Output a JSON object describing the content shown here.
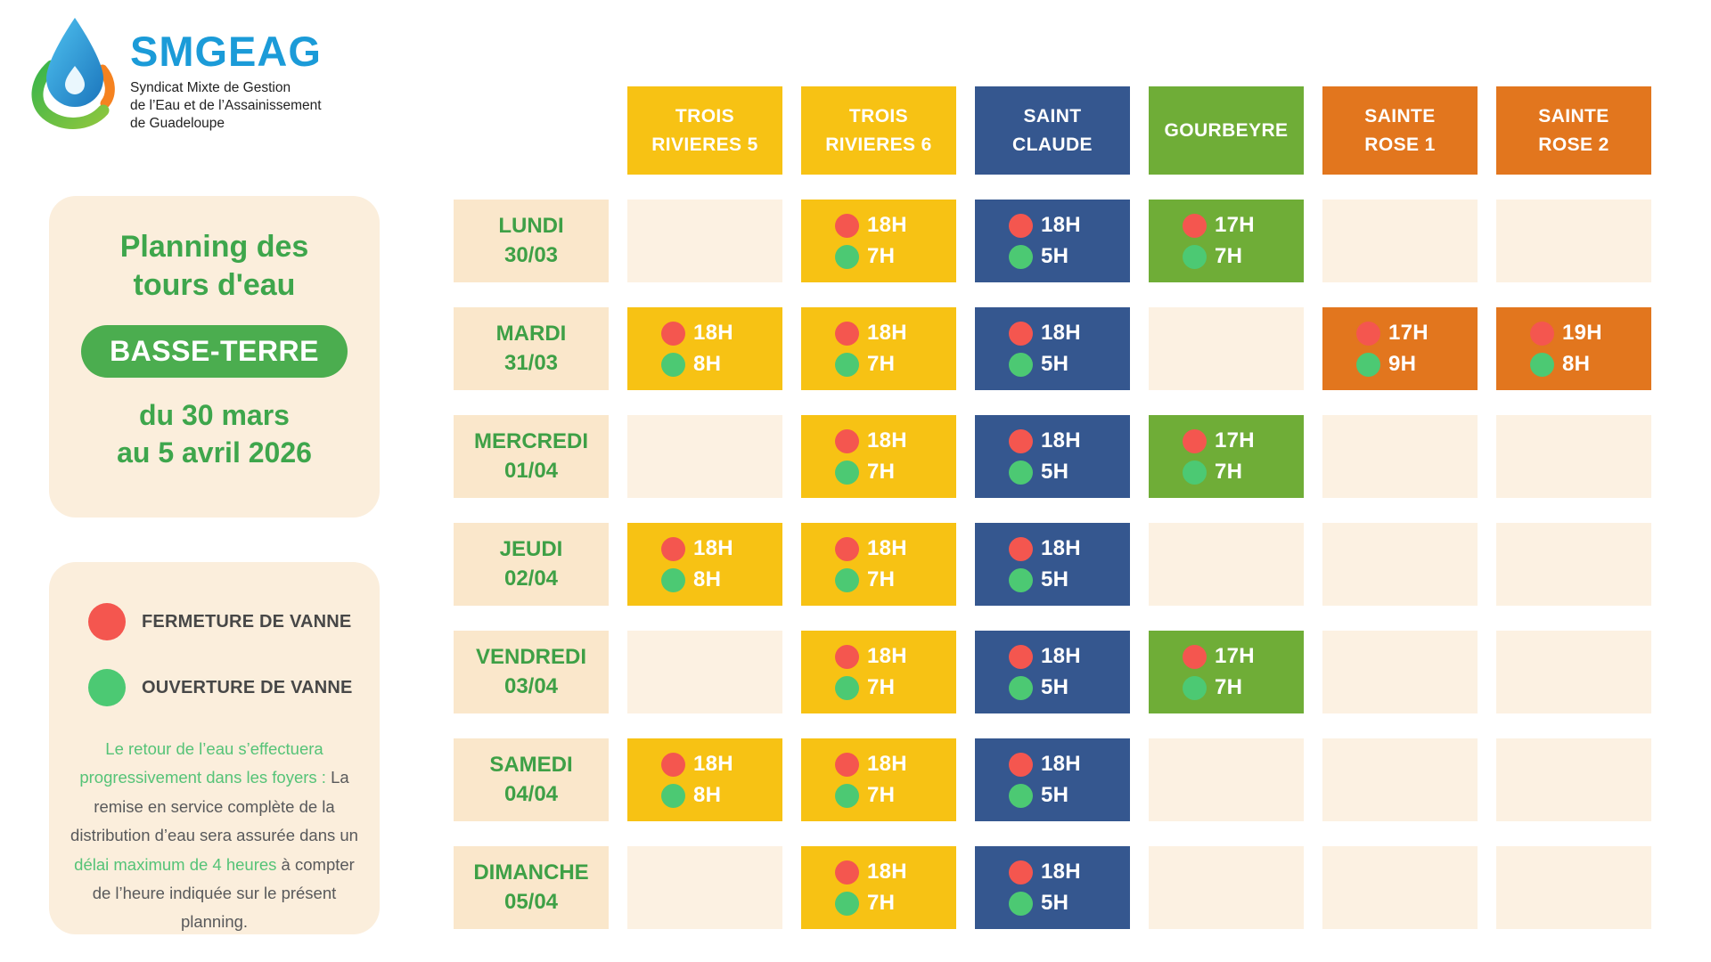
{
  "logo": {
    "name": "SMGEAG",
    "tagline_lines": [
      "Syndicat Mixte de Gestion",
      "de l’Eau et de l’Assainissement",
      "de Guadeloupe"
    ]
  },
  "title_panel": {
    "title_line1": "Planning des",
    "title_line2": "tours d'eau",
    "badge": "BASSE-TERRE",
    "period_line1": "du 30 mars",
    "period_line2": "au 5 avril 2026"
  },
  "legend_panel": {
    "items": [
      {
        "icon": "closure-dot-icon",
        "color": "#F4564F",
        "label": "FERMETURE DE VANNE"
      },
      {
        "icon": "opening-dot-icon",
        "color": "#4CC973",
        "label": "OUVERTURE DE VANNE"
      }
    ],
    "note_segments": [
      {
        "text": "Le retour de l’eau s’effectuera progressivement dans les foyers :",
        "highlight": true
      },
      {
        "text": " La remise en service complète de la distribution d’eau sera assurée dans un ",
        "highlight": false
      },
      {
        "text": "délai maximum de 4 heures",
        "highlight": true
      },
      {
        "text": " à compter de l’heure indiquée sur le présent planning.",
        "highlight": false
      }
    ]
  },
  "table": {
    "dot_colors": {
      "closure": "#F4564F",
      "opening": "#4CC973"
    },
    "columns": [
      {
        "id": "trois-rivieres-5",
        "label_lines": [
          "TROIS",
          "RIVIERES 5"
        ],
        "color": "#F7C214"
      },
      {
        "id": "trois-rivieres-6",
        "label_lines": [
          "TROIS",
          "RIVIERES 6"
        ],
        "color": "#F7C214"
      },
      {
        "id": "saint-claude",
        "label_lines": [
          "SAINT",
          "CLAUDE"
        ],
        "color": "#35578F"
      },
      {
        "id": "gourbeyre",
        "label_lines": [
          "GOURBEYRE"
        ],
        "color": "#6FAD37"
      },
      {
        "id": "sainte-rose-1",
        "label_lines": [
          "SAINTE",
          "ROSE 1"
        ],
        "color": "#E2761E"
      },
      {
        "id": "sainte-rose-2",
        "label_lines": [
          "SAINTE",
          "ROSE 2"
        ],
        "color": "#E2761E"
      }
    ],
    "rows": [
      {
        "day": "LUNDI",
        "date": "30/03",
        "cells": {
          "trois-rivieres-5": null,
          "trois-rivieres-6": {
            "close": "18H",
            "open": "7H"
          },
          "saint-claude": {
            "close": "18H",
            "open": "5H"
          },
          "gourbeyre": {
            "close": "17H",
            "open": "7H"
          },
          "sainte-rose-1": null,
          "sainte-rose-2": null
        }
      },
      {
        "day": "MARDI",
        "date": "31/03",
        "cells": {
          "trois-rivieres-5": {
            "close": "18H",
            "open": "8H"
          },
          "trois-rivieres-6": {
            "close": "18H",
            "open": "7H"
          },
          "saint-claude": {
            "close": "18H",
            "open": "5H"
          },
          "gourbeyre": null,
          "sainte-rose-1": {
            "close": "17H",
            "open": "9H"
          },
          "sainte-rose-2": {
            "close": "19H",
            "open": "8H"
          }
        }
      },
      {
        "day": "MERCREDI",
        "date": "01/04",
        "cells": {
          "trois-rivieres-5": null,
          "trois-rivieres-6": {
            "close": "18H",
            "open": "7H"
          },
          "saint-claude": {
            "close": "18H",
            "open": "5H"
          },
          "gourbeyre": {
            "close": "17H",
            "open": "7H"
          },
          "sainte-rose-1": null,
          "sainte-rose-2": null
        }
      },
      {
        "day": "JEUDI",
        "date": "02/04",
        "cells": {
          "trois-rivieres-5": {
            "close": "18H",
            "open": "8H"
          },
          "trois-rivieres-6": {
            "close": "18H",
            "open": "7H"
          },
          "saint-claude": {
            "close": "18H",
            "open": "5H"
          },
          "gourbeyre": null,
          "sainte-rose-1": null,
          "sainte-rose-2": null
        }
      },
      {
        "day": "VENDREDI",
        "date": "03/04",
        "cells": {
          "trois-rivieres-5": null,
          "trois-rivieres-6": {
            "close": "18H",
            "open": "7H"
          },
          "saint-claude": {
            "close": "18H",
            "open": "5H"
          },
          "gourbeyre": {
            "close": "17H",
            "open": "7H"
          },
          "sainte-rose-1": null,
          "sainte-rose-2": null
        }
      },
      {
        "day": "SAMEDI",
        "date": "04/04",
        "cells": {
          "trois-rivieres-5": {
            "close": "18H",
            "open": "8H"
          },
          "trois-rivieres-6": {
            "close": "18H",
            "open": "7H"
          },
          "saint-claude": {
            "close": "18H",
            "open": "5H"
          },
          "gourbeyre": null,
          "sainte-rose-1": null,
          "sainte-rose-2": null
        }
      },
      {
        "day": "DIMANCHE",
        "date": "05/04",
        "cells": {
          "trois-rivieres-5": null,
          "trois-rivieres-6": {
            "close": "18H",
            "open": "7H"
          },
          "saint-claude": {
            "close": "18H",
            "open": "5H"
          },
          "gourbeyre": null,
          "sainte-rose-1": null,
          "sainte-rose-2": null
        }
      }
    ]
  }
}
